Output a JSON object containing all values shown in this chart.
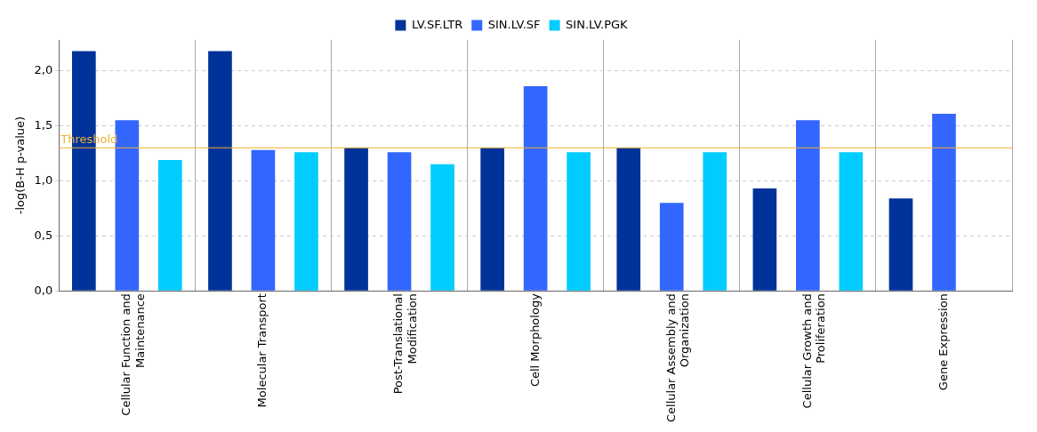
{
  "chart_data": {
    "type": "bar",
    "ylabel": "-log(B-H p-value)",
    "categories": [
      "Cellular Function and Maintenance",
      "Molecular Transport",
      "Post-Translational Modification",
      "Cell Morphology",
      "Cellular Assembly and Organization",
      "Cellular Growth and Proliferation",
      "Gene Expression"
    ],
    "series": [
      {
        "name": "LV.SF.LTR",
        "color": "#003399",
        "values": [
          2.18,
          2.18,
          1.3,
          1.3,
          1.3,
          0.93,
          0.84
        ]
      },
      {
        "name": "SIN.LV.SF",
        "color": "#3366ff",
        "values": [
          1.55,
          1.28,
          1.26,
          1.86,
          0.8,
          1.55,
          1.61
        ]
      },
      {
        "name": "SIN.LV.PGK",
        "color": "#00ccff",
        "values": [
          1.19,
          1.26,
          1.15,
          1.26,
          1.26,
          1.26,
          null
        ]
      }
    ],
    "ylim": [
      0,
      2.28
    ],
    "yticks": [
      {
        "value": 0,
        "label": "0,0"
      },
      {
        "value": 0.5,
        "label": "0,5"
      },
      {
        "value": 1,
        "label": "1,0"
      },
      {
        "value": 1.5,
        "label": "1,5"
      },
      {
        "value": 2,
        "label": "2,0"
      }
    ],
    "ref_lines": [
      {
        "axis": "y",
        "value": 1.3,
        "label": "Threshold",
        "color": "#f0b030"
      }
    ],
    "grid": true,
    "legend": "top"
  }
}
